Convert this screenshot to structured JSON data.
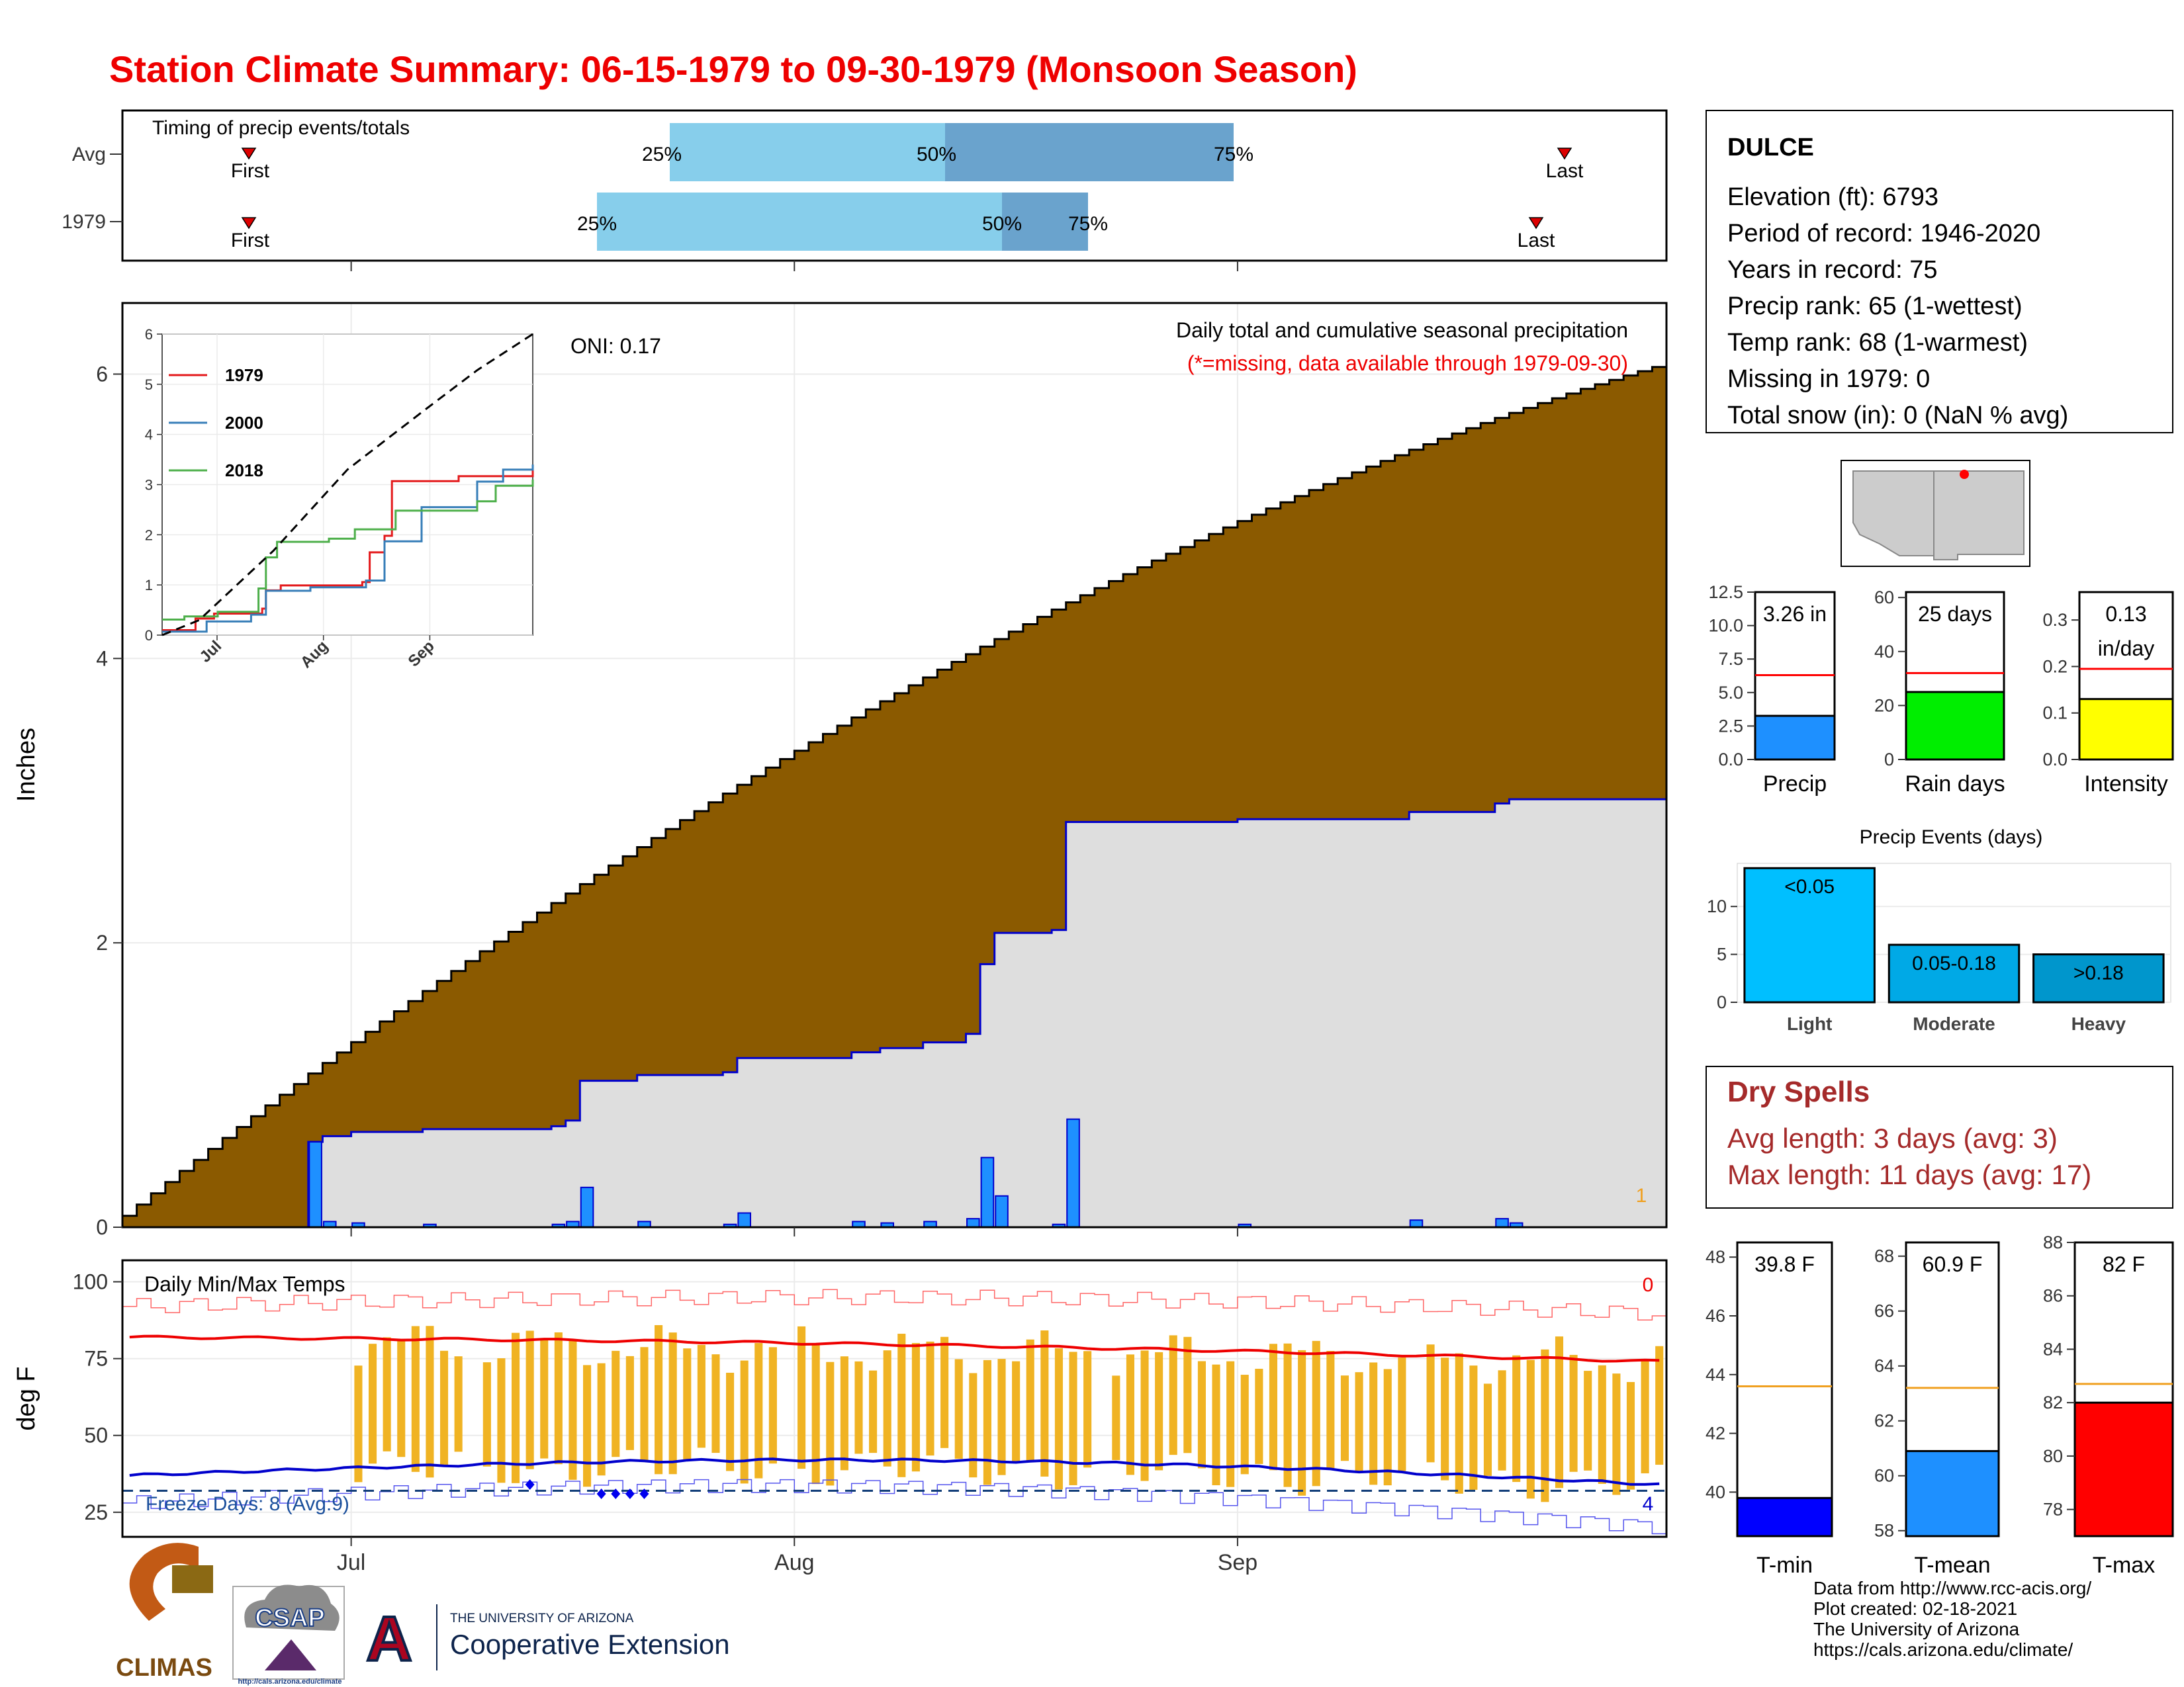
{
  "title": "Station Climate Summary: 06-15-1979 to 09-30-1979 (Monsoon Season)",
  "timing_panel": {
    "label": "Timing of precip events/totals",
    "rows": [
      {
        "name": "Avg",
        "first_label": "First",
        "last_label": "Last",
        "p25": "25%",
        "p50": "50%",
        "p75": "75%"
      },
      {
        "name": "1979",
        "first_label": "First",
        "last_label": "Last",
        "p25": "25%",
        "p50": "50%",
        "p75": "75%"
      }
    ]
  },
  "station_info": {
    "name": "DULCE",
    "lines": [
      "Elevation (ft): 6793",
      "Period of record: 1946-2020",
      "Years in record: 75",
      "Precip rank: 65 (1-wettest)",
      "Temp rank: 68 (1-warmest)",
      "Missing in 1979: 0",
      "Total snow (in): 0 (NaN % avg)"
    ]
  },
  "main_panel": {
    "subtitle": "Daily total and cumulative seasonal precipitation",
    "missing_note": "(*=missing, data available through 1979-09-30)",
    "oni": "ONI: 0.17",
    "ylabel": "Inches",
    "count_label": "1"
  },
  "temp_panel": {
    "label": "Daily Min/Max Temps",
    "ylabel": "deg F",
    "freeze_label": "Freeze Days: 8 (Avg:9)",
    "top_count": "0",
    "bottom_count": "4"
  },
  "x_month_labels": [
    "Jul",
    "Aug",
    "Sep"
  ],
  "precip_events_title": "Precip Events (days)",
  "dry_spells": {
    "title": "Dry Spells",
    "avg_line": "Avg length: 3 days (avg: 3)",
    "max_line": "Max length: 11 days (avg: 17)"
  },
  "logos": {
    "climas": "CLIMAS",
    "csap": "CSAP",
    "csap_url": "http://cals.arizona.edu/climate",
    "ua_small": "THE UNIVERSITY OF ARIZONA",
    "ua_big": "Cooperative Extension",
    "ua_letter": "A"
  },
  "footer": [
    "Data from http://www.rcc-acis.org/",
    "Plot created: 02-18-2021",
    "The University of Arizona",
    "https://cals.arizona.edu/climate/"
  ],
  "colors": {
    "title": "#ee0000",
    "precip_bar": "#1e90ff",
    "deficit": "#8b5a00",
    "surplus": "#008b00",
    "cumulative_area": "#dedede",
    "cum_line": "#0000cc",
    "temp_range": "#f0b323",
    "avg_max": "#ee0000",
    "avg_min": "#0000cc",
    "dry_spell": "#a52a2a"
  },
  "chart_data": [
    {
      "type": "area",
      "id": "cumulative_precip",
      "x_start": "1979-06-15",
      "x_end": "1979-09-30",
      "xlabel": "",
      "ylabel": "Inches",
      "ylim": [
        0,
        6.5
      ],
      "yticks": [
        0,
        2,
        4,
        6
      ],
      "daily_precip": [
        {
          "date": "1979-06-28",
          "value": 0.6
        },
        {
          "date": "1979-06-29",
          "value": 0.04
        },
        {
          "date": "1979-07-01",
          "value": 0.03
        },
        {
          "date": "1979-07-06",
          "value": 0.02
        },
        {
          "date": "1979-07-15",
          "value": 0.02
        },
        {
          "date": "1979-07-16",
          "value": 0.04
        },
        {
          "date": "1979-07-17",
          "value": 0.28
        },
        {
          "date": "1979-07-21",
          "value": 0.04
        },
        {
          "date": "1979-07-27",
          "value": 0.02
        },
        {
          "date": "1979-07-28",
          "value": 0.1
        },
        {
          "date": "1979-08-05",
          "value": 0.04
        },
        {
          "date": "1979-08-07",
          "value": 0.03
        },
        {
          "date": "1979-08-10",
          "value": 0.04
        },
        {
          "date": "1979-08-13",
          "value": 0.06
        },
        {
          "date": "1979-08-14",
          "value": 0.49
        },
        {
          "date": "1979-08-15",
          "value": 0.22
        },
        {
          "date": "1979-08-19",
          "value": 0.02
        },
        {
          "date": "1979-08-20",
          "value": 0.76
        },
        {
          "date": "1979-09-01",
          "value": 0.02
        },
        {
          "date": "1979-09-13",
          "value": 0.05
        },
        {
          "date": "1979-09-19",
          "value": 0.06
        },
        {
          "date": "1979-09-20",
          "value": 0.03
        }
      ],
      "avg_cumulative_end": 6.05,
      "season_total_1979": 3.26
    },
    {
      "type": "line",
      "id": "inset_comparison",
      "categories": [
        "Jul",
        "Aug",
        "Sep"
      ],
      "ylim": [
        0,
        6
      ],
      "yticks": [
        0,
        1,
        2,
        3,
        4,
        5,
        6
      ],
      "series": [
        {
          "name": "1979",
          "color": "#e41a1c",
          "end_value": 3.3
        },
        {
          "name": "2000",
          "color": "#377eb8",
          "end_value": 3.4
        },
        {
          "name": "2018",
          "color": "#4daf4a",
          "end_value": 3.1
        },
        {
          "color": "#000000",
          "end_value": 6.0
        }
      ]
    },
    {
      "type": "bar",
      "id": "summary_precip",
      "categories": [
        "Precip"
      ],
      "values": [
        3.26
      ],
      "data_label": "3.26 in",
      "avg": 6.3,
      "ylim": [
        0,
        12.5
      ],
      "yticks": [
        0.0,
        2.5,
        5.0,
        7.5,
        10.0,
        12.5
      ],
      "color": "#1e90ff"
    },
    {
      "type": "bar",
      "id": "summary_rain_days",
      "categories": [
        "Rain days"
      ],
      "values": [
        25
      ],
      "data_label": "25 days",
      "avg": 32,
      "ylim": [
        0,
        62
      ],
      "yticks": [
        0,
        20,
        40,
        60
      ],
      "color": "#00ee00"
    },
    {
      "type": "bar",
      "id": "summary_intensity",
      "categories": [
        "Intensity"
      ],
      "values": [
        0.13
      ],
      "data_label": [
        "0.13",
        "in/day"
      ],
      "avg": 0.195,
      "ylim": [
        0,
        0.36
      ],
      "yticks": [
        0.0,
        0.1,
        0.2,
        0.3
      ],
      "color": "#ffff00"
    },
    {
      "type": "bar",
      "id": "precip_events",
      "title": "Precip Events (days)",
      "categories": [
        "Light",
        "Moderate",
        "Heavy"
      ],
      "values": [
        14,
        6,
        5
      ],
      "bar_labels": [
        "<0.05",
        "0.05-0.18",
        ">0.18"
      ],
      "ylim": [
        0,
        14.5
      ],
      "yticks": [
        0,
        5,
        10
      ],
      "colors": [
        "#00bfff",
        "#00a9e6",
        "#0096cc"
      ]
    },
    {
      "type": "bar",
      "id": "daily_temps",
      "ylabel": "deg F",
      "ylim": [
        17,
        107
      ],
      "yticks": [
        25,
        50,
        75,
        100
      ],
      "avg_max_range": [
        82,
        74
      ],
      "avg_min_range": [
        37,
        33
      ],
      "freeze_line": 32
    },
    {
      "type": "bar",
      "id": "summary_tmin",
      "categories": [
        "T-min"
      ],
      "values": [
        39.8
      ],
      "data_label": "39.8 F",
      "avg": 43.6,
      "ylim": [
        38.5,
        48.5
      ],
      "yticks": [
        40,
        42,
        44,
        46,
        48
      ],
      "color": "#0000ff"
    },
    {
      "type": "bar",
      "id": "summary_tmean",
      "categories": [
        "T-mean"
      ],
      "values": [
        60.9
      ],
      "data_label": "60.9 F",
      "avg": 63.2,
      "ylim": [
        57.8,
        68.5
      ],
      "yticks": [
        58,
        60,
        62,
        64,
        66,
        68
      ],
      "color": "#1e90ff"
    },
    {
      "type": "bar",
      "id": "summary_tmax",
      "categories": [
        "T-max"
      ],
      "values": [
        82
      ],
      "data_label": "82 F",
      "avg": 82.7,
      "ylim": [
        77,
        88
      ],
      "yticks": [
        78,
        80,
        82,
        84,
        86,
        88
      ],
      "color": "#ff0000"
    }
  ]
}
